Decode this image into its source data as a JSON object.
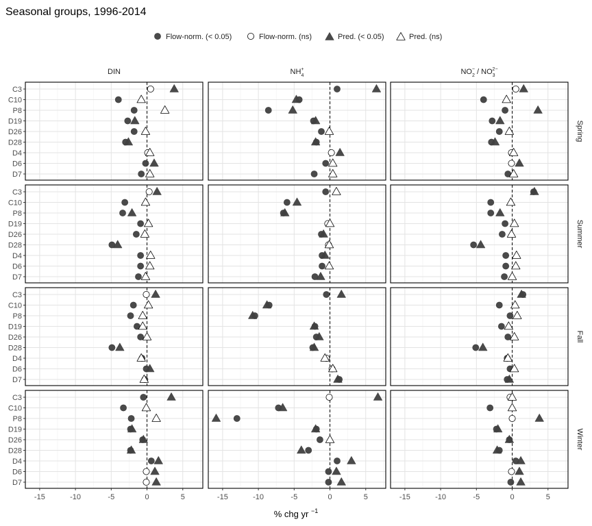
{
  "chart_data": {
    "type": "scatter",
    "title": "Seasonal groups, 1996-2014",
    "xlabel": "% chg yr",
    "xlabel_sup": "−1",
    "xlim": [
      -17,
      7.8
    ],
    "xticks": [
      -15,
      -10,
      -5,
      0,
      5
    ],
    "grid": true,
    "legend_position": "top",
    "legend": [
      {
        "key": "fs",
        "label": "Flow-norm. (< 0.05)",
        "shape": "circle",
        "filled": true
      },
      {
        "key": "fn",
        "label": "Flow-norm. (ns)",
        "shape": "circle",
        "filled": false
      },
      {
        "key": "ps",
        "label": "Pred. (< 0.05)",
        "shape": "triangle",
        "filled": true
      },
      {
        "key": "pn",
        "label": "Pred. (ns)",
        "shape": "triangle",
        "filled": false
      }
    ],
    "columns": [
      {
        "key": "din",
        "label": "DIN"
      },
      {
        "key": "nh4",
        "label": "NH4+"
      },
      {
        "key": "no23",
        "label": "NO2- / NO32-"
      }
    ],
    "rows": [
      "Spring",
      "Summer",
      "Fall",
      "Winter"
    ],
    "stations": [
      "C3",
      "C10",
      "P8",
      "D19",
      "D26",
      "D28",
      "D4",
      "D6",
      "D7"
    ],
    "panels": {
      "Spring": {
        "din": {
          "flow": [
            [
              0.5,
              "ns"
            ],
            [
              -4,
              "s"
            ],
            [
              -1.8,
              "s"
            ],
            [
              -2.7,
              "s"
            ],
            [
              -1.8,
              "s"
            ],
            [
              -3,
              "s"
            ],
            [
              0.1,
              "ns"
            ],
            [
              -0.2,
              "s"
            ],
            [
              -0.8,
              "s"
            ]
          ],
          "pred": [
            [
              3.8,
              "s"
            ],
            [
              -0.8,
              "ns"
            ],
            [
              2.5,
              "ns"
            ],
            [
              -1.7,
              "s"
            ],
            [
              -0.2,
              "ns"
            ],
            [
              -2.6,
              "s"
            ],
            [
              0.4,
              "ns"
            ],
            [
              1,
              "s"
            ],
            [
              0.4,
              "ns"
            ]
          ]
        },
        "nh4": {
          "flow": [
            [
              1,
              "s"
            ],
            [
              -4.3,
              "s"
            ],
            [
              -8.6,
              "s"
            ],
            [
              -2.3,
              "s"
            ],
            [
              -1.2,
              "s"
            ],
            [
              -1.9,
              "s"
            ],
            [
              0.2,
              "ns"
            ],
            [
              -0.6,
              "s"
            ],
            [
              -2.2,
              "s"
            ]
          ],
          "pred": [
            [
              6.5,
              "s"
            ],
            [
              -4.7,
              "s"
            ],
            [
              -5.2,
              "s"
            ],
            [
              -2,
              "s"
            ],
            [
              -0.1,
              "ns"
            ],
            [
              -2,
              "s"
            ],
            [
              1.4,
              "s"
            ],
            [
              0.4,
              "ns"
            ],
            [
              0.4,
              "ns"
            ]
          ]
        },
        "no23": {
          "flow": [
            [
              0.5,
              "ns"
            ],
            [
              -4,
              "s"
            ],
            [
              -1,
              "s"
            ],
            [
              -2.8,
              "s"
            ],
            [
              -1.8,
              "s"
            ],
            [
              -2.9,
              "s"
            ],
            [
              -0.1,
              "ns"
            ],
            [
              -0.1,
              "ns"
            ],
            [
              -0.6,
              "s"
            ]
          ],
          "pred": [
            [
              1.6,
              "s"
            ],
            [
              -0.8,
              "ns"
            ],
            [
              3.6,
              "s"
            ],
            [
              -1.7,
              "s"
            ],
            [
              -0.4,
              "ns"
            ],
            [
              -2.4,
              "s"
            ],
            [
              0.2,
              "ns"
            ],
            [
              1,
              "s"
            ],
            [
              0.2,
              "ns"
            ]
          ]
        }
      },
      "Summer": {
        "din": {
          "flow": [
            [
              0.3,
              "ns"
            ],
            [
              -3.1,
              "s"
            ],
            [
              -3.4,
              "s"
            ],
            [
              -0.9,
              "s"
            ],
            [
              -1.5,
              "s"
            ],
            [
              -4.9,
              "s"
            ],
            [
              -0.9,
              "s"
            ],
            [
              -0.9,
              "s"
            ],
            [
              -1.2,
              "s"
            ]
          ],
          "pred": [
            [
              1.4,
              "s"
            ],
            [
              -0.2,
              "ns"
            ],
            [
              -2.1,
              "s"
            ],
            [
              0.2,
              "ns"
            ],
            [
              -0.3,
              "ns"
            ],
            [
              -4.1,
              "s"
            ],
            [
              0.5,
              "ns"
            ],
            [
              0.4,
              "ns"
            ],
            [
              -0.2,
              "ns"
            ]
          ]
        },
        "nh4": {
          "flow": [
            [
              -0.6,
              "s"
            ],
            [
              -6,
              "s"
            ],
            [
              -6.5,
              "s"
            ],
            [
              -0.3,
              "ns"
            ],
            [
              -1.2,
              "s"
            ],
            [
              -0.2,
              "ns"
            ],
            [
              -1.1,
              "s"
            ],
            [
              -1.1,
              "s"
            ],
            [
              -2.1,
              "s"
            ]
          ],
          "pred": [
            [
              0.9,
              "ns"
            ],
            [
              -4.6,
              "s"
            ],
            [
              -6.3,
              "s"
            ],
            [
              0,
              "ns"
            ],
            [
              -0.9,
              "s"
            ],
            [
              -0.1,
              "ns"
            ],
            [
              -0.7,
              "s"
            ],
            [
              -0.1,
              "ns"
            ],
            [
              -1.3,
              "s"
            ]
          ]
        },
        "no23": {
          "flow": [
            [
              3,
              "s"
            ],
            [
              -3,
              "s"
            ],
            [
              -3,
              "s"
            ],
            [
              -1,
              "s"
            ],
            [
              -1.4,
              "s"
            ],
            [
              -5.4,
              "s"
            ],
            [
              -0.9,
              "s"
            ],
            [
              -0.9,
              "s"
            ],
            [
              -1.1,
              "s"
            ]
          ],
          "pred": [
            [
              3.1,
              "s"
            ],
            [
              -0.2,
              "ns"
            ],
            [
              -1.7,
              "s"
            ],
            [
              0.3,
              "ns"
            ],
            [
              -0.1,
              "ns"
            ],
            [
              -4.4,
              "s"
            ],
            [
              0.6,
              "ns"
            ],
            [
              0.5,
              "ns"
            ],
            [
              0,
              "ns"
            ]
          ]
        }
      },
      "Fall": {
        "din": {
          "flow": [
            [
              -0.1,
              "ns"
            ],
            [
              -1.9,
              "s"
            ],
            [
              -2.3,
              "s"
            ],
            [
              -1.4,
              "s"
            ],
            [
              -0.9,
              "s"
            ],
            [
              -4.9,
              "s"
            ],
            [
              -0.7,
              "s"
            ],
            [
              -0.1,
              "s"
            ],
            [
              -0.3,
              "s"
            ]
          ],
          "pred": [
            [
              1.2,
              "s"
            ],
            [
              0.2,
              "ns"
            ],
            [
              -0.6,
              "ns"
            ],
            [
              -0.6,
              "ns"
            ],
            [
              0,
              "ns"
            ],
            [
              -3.8,
              "s"
            ],
            [
              -0.8,
              "ns"
            ],
            [
              0.4,
              "s"
            ],
            [
              -0.4,
              "ns"
            ]
          ]
        },
        "nh4": {
          "flow": [
            [
              -0.5,
              "s"
            ],
            [
              -8.5,
              "s"
            ],
            [
              -10.5,
              "s"
            ],
            [
              -2.1,
              "s"
            ],
            [
              -1.9,
              "s"
            ],
            [
              -2.4,
              "s"
            ],
            [
              -0.5,
              "ns"
            ],
            [
              0.3,
              "ns"
            ],
            [
              1.3,
              "s"
            ]
          ],
          "pred": [
            [
              1.6,
              "s"
            ],
            [
              -8.8,
              "s"
            ],
            [
              -10.8,
              "s"
            ],
            [
              -2.2,
              "s"
            ],
            [
              -1.5,
              "s"
            ],
            [
              -2.2,
              "s"
            ],
            [
              -0.7,
              "ns"
            ],
            [
              0.4,
              "ns"
            ],
            [
              1.1,
              "s"
            ]
          ]
        },
        "no23": {
          "flow": [
            [
              1.5,
              "s"
            ],
            [
              -1.8,
              "s"
            ],
            [
              -0.3,
              "s"
            ],
            [
              -1.5,
              "s"
            ],
            [
              -0.6,
              "s"
            ],
            [
              -5.1,
              "s"
            ],
            [
              -0.7,
              "s"
            ],
            [
              -0.3,
              "s"
            ],
            [
              -0.7,
              "s"
            ]
          ],
          "pred": [
            [
              1.3,
              "s"
            ],
            [
              0.4,
              "ns"
            ],
            [
              0.7,
              "ns"
            ],
            [
              -0.5,
              "ns"
            ],
            [
              0.3,
              "ns"
            ],
            [
              -4.1,
              "s"
            ],
            [
              -0.6,
              "ns"
            ],
            [
              0.3,
              "ns"
            ],
            [
              -0.4,
              "s"
            ]
          ]
        }
      },
      "Winter": {
        "din": {
          "flow": [
            [
              -0.5,
              "s"
            ],
            [
              -3.3,
              "s"
            ],
            [
              -2.2,
              "s"
            ],
            [
              -2.3,
              "s"
            ],
            [
              -0.6,
              "s"
            ],
            [
              -2.3,
              "s"
            ],
            [
              0.6,
              "s"
            ],
            [
              -0.1,
              "ns"
            ],
            [
              -0.1,
              "ns"
            ]
          ],
          "pred": [
            [
              3.4,
              "s"
            ],
            [
              -0.1,
              "ns"
            ],
            [
              1.3,
              "ns"
            ],
            [
              -2.1,
              "s"
            ],
            [
              -0.5,
              "s"
            ],
            [
              -2.2,
              "s"
            ],
            [
              1.6,
              "s"
            ],
            [
              1.1,
              "s"
            ],
            [
              1.3,
              "s"
            ]
          ]
        },
        "nh4": {
          "flow": [
            [
              -0.1,
              "ns"
            ],
            [
              -7.2,
              "s"
            ],
            [
              -13,
              "s"
            ],
            [
              -1.9,
              "s"
            ],
            [
              -1.4,
              "s"
            ],
            [
              -3,
              "s"
            ],
            [
              1,
              "s"
            ],
            [
              -0.2,
              "s"
            ],
            [
              -0.2,
              "s"
            ]
          ],
          "pred": [
            [
              6.7,
              "s"
            ],
            [
              -6.6,
              "s"
            ],
            [
              -15.9,
              "s"
            ],
            [
              -2,
              "s"
            ],
            [
              0,
              "ns"
            ],
            [
              -4,
              "s"
            ],
            [
              3,
              "s"
            ],
            [
              0.9,
              "s"
            ],
            [
              1.6,
              "s"
            ]
          ]
        },
        "no23": {
          "flow": [
            [
              -0.3,
              "ns"
            ],
            [
              -3.1,
              "s"
            ],
            [
              0,
              "ns"
            ],
            [
              -2.2,
              "s"
            ],
            [
              -0.4,
              "s"
            ],
            [
              -1.8,
              "s"
            ],
            [
              0.5,
              "s"
            ],
            [
              -0.1,
              "ns"
            ],
            [
              -0.2,
              "s"
            ]
          ],
          "pred": [
            [
              0,
              "ns"
            ],
            [
              0,
              "ns"
            ],
            [
              3.8,
              "s"
            ],
            [
              -2,
              "s"
            ],
            [
              -0.4,
              "s"
            ],
            [
              -2.1,
              "s"
            ],
            [
              1.2,
              "s"
            ],
            [
              1,
              "s"
            ],
            [
              1.2,
              "s"
            ]
          ]
        }
      }
    }
  }
}
